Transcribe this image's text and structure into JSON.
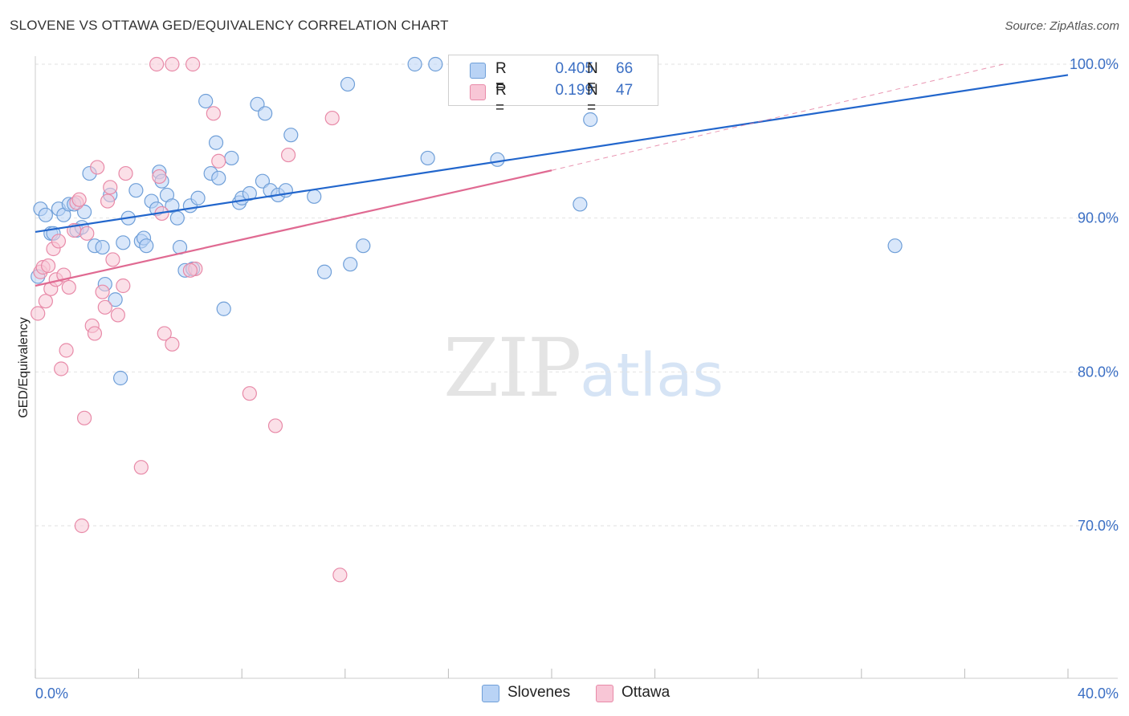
{
  "header": {
    "title": "SLOVENE VS OTTAWA GED/EQUIVALENCY CORRELATION CHART",
    "source": "Source: ZipAtlas.com"
  },
  "legend": {
    "r_label": "R =",
    "n_label": "N =",
    "series": [
      {
        "name": "Slovenes",
        "r": "0.405",
        "n": "66"
      },
      {
        "name": "Ottawa",
        "r": "0.199",
        "n": "47"
      }
    ]
  },
  "watermark": {
    "zip": "ZIP",
    "atlas": "atlas"
  },
  "colors": {
    "slovenes_fill": "#b9d3f5",
    "slovenes_stroke": "#6f9fd8",
    "slovenes_line": "#2266cc",
    "ottawa_fill": "#f8c6d6",
    "ottawa_stroke": "#e88aa8",
    "ottawa_line": "#e06a92",
    "axis_text": "#3b6fc4",
    "grid": "#e2e2e2"
  },
  "chart_data": {
    "type": "scatter",
    "title": "SLOVENE VS OTTAWA GED/EQUIVALENCY CORRELATION CHART",
    "xlabel": "",
    "ylabel": "GED/Equivalency",
    "xlim": [
      0,
      40
    ],
    "ylim": [
      60,
      101
    ],
    "x_tick_labels": [
      {
        "value": 0,
        "label": "0.0%"
      },
      {
        "value": 40,
        "label": "40.0%"
      }
    ],
    "y_tick_labels": [
      {
        "value": 100,
        "label": "100.0%"
      },
      {
        "value": 90,
        "label": "90.0%"
      },
      {
        "value": 80,
        "label": "80.0%"
      },
      {
        "value": 70,
        "label": "70.0%"
      }
    ],
    "series": [
      {
        "name": "Slovenes",
        "trend": {
          "x": [
            0,
            40
          ],
          "y": [
            89.1,
            99.3
          ]
        },
        "points": [
          [
            0.1,
            86.2
          ],
          [
            0.2,
            90.6
          ],
          [
            0.4,
            90.2
          ],
          [
            0.6,
            89.0
          ],
          [
            0.7,
            89.0
          ],
          [
            0.9,
            90.6
          ],
          [
            1.1,
            90.2
          ],
          [
            1.3,
            90.9
          ],
          [
            1.5,
            90.9
          ],
          [
            1.6,
            89.2
          ],
          [
            1.8,
            89.4
          ],
          [
            1.9,
            90.4
          ],
          [
            2.1,
            92.9
          ],
          [
            2.3,
            88.2
          ],
          [
            2.6,
            88.1
          ],
          [
            2.7,
            85.7
          ],
          [
            2.9,
            91.5
          ],
          [
            3.1,
            84.7
          ],
          [
            3.3,
            79.6
          ],
          [
            3.4,
            88.4
          ],
          [
            3.6,
            90.0
          ],
          [
            3.9,
            91.8
          ],
          [
            4.1,
            88.5
          ],
          [
            4.2,
            88.7
          ],
          [
            4.3,
            88.2
          ],
          [
            4.5,
            91.1
          ],
          [
            4.7,
            90.6
          ],
          [
            4.8,
            93.0
          ],
          [
            4.9,
            92.4
          ],
          [
            5.1,
            91.5
          ],
          [
            5.3,
            90.8
          ],
          [
            5.5,
            90.0
          ],
          [
            5.6,
            88.1
          ],
          [
            5.8,
            86.6
          ],
          [
            6.0,
            90.8
          ],
          [
            6.1,
            86.7
          ],
          [
            6.3,
            91.3
          ],
          [
            6.6,
            97.6
          ],
          [
            6.8,
            92.9
          ],
          [
            7.0,
            94.9
          ],
          [
            7.1,
            92.6
          ],
          [
            7.3,
            84.1
          ],
          [
            7.6,
            93.9
          ],
          [
            7.9,
            91.0
          ],
          [
            8.0,
            91.3
          ],
          [
            8.3,
            91.6
          ],
          [
            8.6,
            97.4
          ],
          [
            8.8,
            92.4
          ],
          [
            8.9,
            96.8
          ],
          [
            9.1,
            91.8
          ],
          [
            9.4,
            91.5
          ],
          [
            9.7,
            91.8
          ],
          [
            9.9,
            95.4
          ],
          [
            10.8,
            91.4
          ],
          [
            11.2,
            86.5
          ],
          [
            12.1,
            98.7
          ],
          [
            12.2,
            87.0
          ],
          [
            12.7,
            88.2
          ],
          [
            14.7,
            100.0
          ],
          [
            15.2,
            93.9
          ],
          [
            15.5,
            100.0
          ],
          [
            17.9,
            93.8
          ],
          [
            22.3,
            100.0
          ],
          [
            21.5,
            96.4
          ],
          [
            21.1,
            90.9
          ],
          [
            33.3,
            88.2
          ]
        ]
      },
      {
        "name": "Ottawa",
        "trend": {
          "x": [
            0,
            20
          ],
          "y": [
            85.6,
            93.1
          ],
          "dashed_extension": {
            "x": [
              20,
              37.5
            ],
            "y": [
              93.1,
              100.0
            ]
          }
        },
        "points": [
          [
            0.1,
            83.8
          ],
          [
            0.2,
            86.5
          ],
          [
            0.3,
            86.8
          ],
          [
            0.4,
            84.6
          ],
          [
            0.5,
            86.9
          ],
          [
            0.6,
            85.4
          ],
          [
            0.7,
            88.0
          ],
          [
            0.8,
            86.0
          ],
          [
            0.9,
            88.5
          ],
          [
            1.0,
            80.2
          ],
          [
            1.1,
            86.3
          ],
          [
            1.2,
            81.4
          ],
          [
            1.3,
            85.5
          ],
          [
            1.5,
            89.2
          ],
          [
            1.6,
            91.0
          ],
          [
            1.7,
            91.2
          ],
          [
            1.8,
            70.0
          ],
          [
            1.9,
            77.0
          ],
          [
            2.0,
            89.0
          ],
          [
            2.2,
            83.0
          ],
          [
            2.3,
            82.5
          ],
          [
            2.4,
            93.3
          ],
          [
            2.6,
            85.2
          ],
          [
            2.7,
            84.2
          ],
          [
            2.8,
            91.1
          ],
          [
            2.9,
            92.0
          ],
          [
            3.0,
            87.3
          ],
          [
            3.2,
            83.7
          ],
          [
            3.4,
            85.6
          ],
          [
            3.5,
            92.9
          ],
          [
            4.1,
            73.8
          ],
          [
            4.7,
            100.0
          ],
          [
            4.8,
            92.7
          ],
          [
            4.9,
            90.3
          ],
          [
            5.0,
            82.5
          ],
          [
            5.3,
            100.0
          ],
          [
            5.3,
            81.8
          ],
          [
            6.1,
            100.0
          ],
          [
            6.2,
            86.7
          ],
          [
            6.9,
            96.8
          ],
          [
            7.1,
            93.7
          ],
          [
            8.3,
            78.6
          ],
          [
            9.3,
            76.5
          ],
          [
            9.8,
            94.1
          ],
          [
            11.5,
            96.5
          ],
          [
            11.8,
            66.8
          ],
          [
            6.0,
            86.6
          ]
        ]
      }
    ]
  }
}
